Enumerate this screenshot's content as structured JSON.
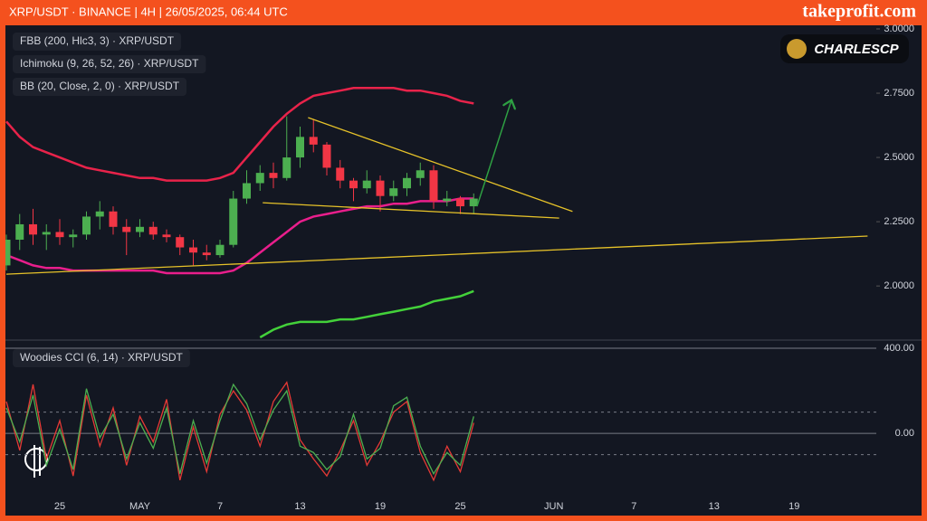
{
  "header": {
    "title": "XRP/USDT · BINANCE | 4H | 26/05/2025, 06:44 UTC",
    "site": "takeprofit.com"
  },
  "logo": "CHARLESCP",
  "chart_data": [
    {
      "type": "candlestick",
      "indicators": [
        "FBB (200, Hlc3, 3) · XRP/USDT",
        "Ichimoku (9, 26, 52, 26) · XRP/USDT",
        "BB (20, Close, 2, 0) · XRP/USDT"
      ],
      "categories": [
        null,
        null,
        null,
        null,
        "25",
        null,
        null,
        null,
        null,
        null,
        "MAY",
        null,
        null,
        null,
        null,
        null,
        "7",
        null,
        null,
        null,
        null,
        null,
        "13",
        null,
        null,
        null,
        null,
        null,
        "19",
        null,
        null,
        null,
        null,
        null,
        "25",
        null,
        null,
        null,
        null,
        null,
        null,
        "JUN",
        null,
        null,
        null,
        null,
        null,
        "7",
        null,
        null,
        null,
        null,
        null,
        "13",
        null,
        null,
        null,
        null,
        null,
        "19",
        null,
        null,
        null,
        null,
        null,
        null
      ],
      "open": [
        2.08,
        2.18,
        2.24,
        2.2,
        2.21,
        2.19,
        2.2,
        2.27,
        2.29,
        2.23,
        2.21,
        2.23,
        2.2,
        2.19,
        2.15,
        2.13,
        2.12,
        2.16,
        2.34,
        2.4,
        2.44,
        2.42,
        2.5,
        2.58,
        2.55,
        2.46,
        2.41,
        2.38,
        2.41,
        2.35,
        2.38,
        2.42,
        2.45,
        2.33,
        2.34,
        2.31,
        null,
        null,
        null,
        null,
        null,
        null,
        null,
        null,
        null,
        null,
        null,
        null,
        null,
        null,
        null,
        null,
        null,
        null,
        null,
        null,
        null,
        null,
        null,
        null,
        null,
        null,
        null,
        null,
        null,
        null
      ],
      "high": [
        2.2,
        2.28,
        2.3,
        2.24,
        2.26,
        2.22,
        2.29,
        2.33,
        2.31,
        2.26,
        2.26,
        2.25,
        2.22,
        2.2,
        2.18,
        2.16,
        2.18,
        2.37,
        2.45,
        2.47,
        2.48,
        2.66,
        2.62,
        2.65,
        2.56,
        2.49,
        2.42,
        2.45,
        2.43,
        2.41,
        2.44,
        2.48,
        2.47,
        2.37,
        2.35,
        2.36,
        null,
        null,
        null,
        null,
        null,
        null,
        null,
        null,
        null,
        null,
        null,
        null,
        null,
        null,
        null,
        null,
        null,
        null,
        null,
        null,
        null,
        null,
        null,
        null,
        null,
        null,
        null,
        null,
        null,
        null
      ],
      "low": [
        2.06,
        2.14,
        2.16,
        2.14,
        2.16,
        2.15,
        2.18,
        2.22,
        2.2,
        2.12,
        2.19,
        2.18,
        2.17,
        2.12,
        2.08,
        2.1,
        2.11,
        2.15,
        2.32,
        2.37,
        2.38,
        2.41,
        2.46,
        2.52,
        2.43,
        2.38,
        2.33,
        2.36,
        2.29,
        2.33,
        2.35,
        2.39,
        2.3,
        2.31,
        2.28,
        2.28,
        null,
        null,
        null,
        null,
        null,
        null,
        null,
        null,
        null,
        null,
        null,
        null,
        null,
        null,
        null,
        null,
        null,
        null,
        null,
        null,
        null,
        null,
        null,
        null,
        null,
        null,
        null,
        null,
        null,
        null
      ],
      "close": [
        2.18,
        2.24,
        2.2,
        2.21,
        2.19,
        2.2,
        2.27,
        2.29,
        2.23,
        2.21,
        2.23,
        2.2,
        2.19,
        2.15,
        2.13,
        2.12,
        2.16,
        2.34,
        2.4,
        2.44,
        2.42,
        2.5,
        2.58,
        2.55,
        2.46,
        2.41,
        2.38,
        2.41,
        2.35,
        2.38,
        2.42,
        2.45,
        2.33,
        2.34,
        2.31,
        2.34,
        null,
        null,
        null,
        null,
        null,
        null,
        null,
        null,
        null,
        null,
        null,
        null,
        null,
        null,
        null,
        null,
        null,
        null,
        null,
        null,
        null,
        null,
        null,
        null,
        null,
        null,
        null,
        null,
        null,
        null
      ],
      "up_color": "#4caf50",
      "down_color": "#f23645",
      "series": [
        {
          "color": "#e8234a",
          "values": [
            2.64,
            2.58,
            2.54,
            2.52,
            2.5,
            2.48,
            2.46,
            2.45,
            2.44,
            2.43,
            2.42,
            2.42,
            2.41,
            2.41,
            2.41,
            2.41,
            2.42,
            2.44,
            2.5,
            2.56,
            2.62,
            2.67,
            2.71,
            2.74,
            2.75,
            2.76,
            2.77,
            2.77,
            2.77,
            2.77,
            2.76,
            2.76,
            2.75,
            2.74,
            2.72,
            2.71,
            null,
            null,
            null,
            null,
            null,
            null,
            null,
            null,
            null,
            null,
            null,
            null,
            null,
            null,
            null,
            null,
            null,
            null,
            null,
            null,
            null,
            null,
            null,
            null,
            null,
            null,
            null,
            null,
            null,
            null
          ]
        },
        {
          "color": "#e91e8c",
          "values": [
            2.12,
            2.1,
            2.08,
            2.07,
            2.07,
            2.06,
            2.06,
            2.06,
            2.06,
            2.06,
            2.06,
            2.06,
            2.05,
            2.05,
            2.05,
            2.05,
            2.05,
            2.06,
            2.09,
            2.13,
            2.17,
            2.21,
            2.25,
            2.27,
            2.28,
            2.29,
            2.3,
            2.31,
            2.31,
            2.32,
            2.32,
            2.33,
            2.33,
            2.33,
            2.34,
            2.34,
            null,
            null,
            null,
            null,
            null,
            null,
            null,
            null,
            null,
            null,
            null,
            null,
            null,
            null,
            null,
            null,
            null,
            null,
            null,
            null,
            null,
            null,
            null,
            null,
            null,
            null,
            null,
            null,
            null,
            null
          ]
        },
        {
          "color": "#43d13a",
          "values": [
            null,
            null,
            null,
            null,
            null,
            null,
            null,
            null,
            null,
            null,
            null,
            null,
            null,
            null,
            null,
            null,
            null,
            null,
            null,
            1.8,
            1.83,
            1.85,
            1.86,
            1.86,
            1.86,
            1.87,
            1.87,
            1.88,
            1.89,
            1.9,
            1.91,
            1.92,
            1.94,
            1.95,
            1.96,
            1.98,
            null,
            null,
            null,
            null,
            null,
            null,
            null,
            null,
            null,
            null,
            null,
            null,
            null,
            null,
            null,
            null,
            null,
            null,
            null,
            null,
            null,
            null,
            null,
            null,
            null,
            null,
            null,
            null,
            null,
            null
          ]
        }
      ],
      "trendlines": [
        {
          "color": "#e6c229",
          "points": [
            [
              22.6,
              2.655
            ],
            [
              42.4,
              2.29
            ]
          ]
        },
        {
          "color": "#e6c229",
          "points": [
            [
              19.2,
              2.324
            ],
            [
              41.4,
              2.264
            ]
          ]
        },
        {
          "color": "#e6c229",
          "points": [
            [
              0,
              2.046
            ],
            [
              64.5,
              2.194
            ]
          ]
        }
      ],
      "arrow": {
        "color": "#2ea043",
        "points": [
          [
            35.25,
            2.31
          ],
          [
            37.8,
            2.718
          ]
        ]
      },
      "ylim": [
        1.8,
        3.014
      ],
      "yticks": [
        {
          "value": 3.0,
          "label": "3.0000"
        },
        {
          "value": 2.75,
          "label": "2.7500"
        },
        {
          "value": 2.5,
          "label": "2.5000"
        },
        {
          "value": 2.25,
          "label": "2.2500"
        },
        {
          "value": 2.0,
          "label": "2.0000"
        }
      ],
      "grid": false
    },
    {
      "type": "line",
      "indicators": [
        "Woodies CCI (6, 14) · XRP/USDT"
      ],
      "series": [
        {
          "color": "#e53935",
          "values": [
            150,
            -80,
            230,
            -120,
            60,
            -200,
            180,
            -60,
            120,
            -150,
            80,
            -40,
            160,
            -220,
            30,
            -180,
            90,
            200,
            110,
            -60,
            150,
            240,
            -30,
            -120,
            -200,
            -80,
            60,
            -150,
            -40,
            100,
            150,
            -90,
            -220,
            -60,
            -180,
            50,
            null,
            null,
            null,
            null,
            null,
            null,
            null,
            null,
            null,
            null,
            null,
            null,
            null,
            null,
            null,
            null,
            null,
            null,
            null,
            null,
            null,
            null,
            null,
            null,
            null,
            null,
            null,
            null,
            null,
            null
          ]
        },
        {
          "color": "#4caf50",
          "values": [
            120,
            -40,
            180,
            -150,
            20,
            -170,
            210,
            -20,
            90,
            -120,
            50,
            -70,
            120,
            -190,
            60,
            -140,
            60,
            230,
            140,
            -30,
            110,
            200,
            -60,
            -90,
            -170,
            -110,
            90,
            -120,
            -70,
            130,
            170,
            -60,
            -190,
            -90,
            -150,
            80,
            null,
            null,
            null,
            null,
            null,
            null,
            null,
            null,
            null,
            null,
            null,
            null,
            null,
            null,
            null,
            null,
            null,
            null,
            null,
            null,
            null,
            null,
            null,
            null,
            null,
            null,
            null,
            null,
            null,
            null
          ]
        }
      ],
      "levels": [
        100,
        -100
      ],
      "ylim": [
        -280,
        430
      ],
      "yticks": [
        {
          "value": 400,
          "label": "400.00"
        },
        {
          "value": 0,
          "label": "0.00"
        }
      ],
      "grid": true
    }
  ]
}
